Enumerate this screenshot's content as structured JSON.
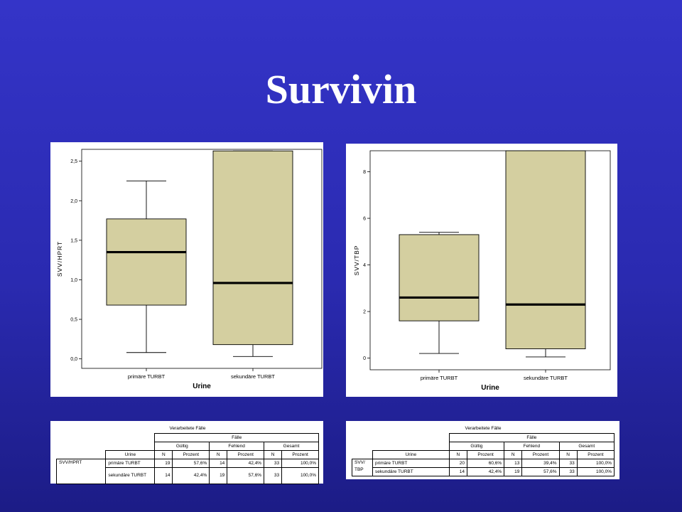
{
  "slide": {
    "title": "Survivin"
  },
  "chart_data": [
    {
      "type": "box",
      "ylabel": "SVV/HPRT",
      "xlabel": "Urine",
      "ylim": [
        -0.12,
        2.65
      ],
      "yticks": [
        0.0,
        0.5,
        1.0,
        1.5,
        2.0,
        2.5
      ],
      "ytick_labels": [
        "0,0",
        "0,5",
        "1,0",
        "1,5",
        "2,0",
        "2,5"
      ],
      "categories": [
        "primäre TURBT",
        "sekundäre TURBT"
      ],
      "boxes": [
        {
          "whisker_low": 0.08,
          "q1": 0.68,
          "median": 1.35,
          "q3": 1.77,
          "whisker_high": 2.25
        },
        {
          "whisker_low": 0.03,
          "q1": 0.18,
          "median": 0.96,
          "q3": 2.63,
          "whisker_high": 2.63
        }
      ],
      "box_color": "#d4cfa0"
    },
    {
      "type": "box",
      "ylabel": "SVV/TBP",
      "xlabel": "Urine",
      "ylim": [
        -0.5,
        8.9
      ],
      "yticks": [
        0,
        2,
        4,
        6,
        8
      ],
      "ytick_labels": [
        "0",
        "2",
        "4",
        "6",
        "8"
      ],
      "categories": [
        "primäre TURBT",
        "sekundäre TURBT"
      ],
      "boxes": [
        {
          "whisker_low": 0.2,
          "q1": 1.6,
          "median": 2.6,
          "q3": 5.3,
          "whisker_high": 5.4
        },
        {
          "whisker_low": 0.05,
          "q1": 0.4,
          "median": 2.3,
          "q3": 8.9,
          "whisker_high": 8.9
        }
      ],
      "box_color": "#d4cfa0"
    }
  ],
  "tables": [
    {
      "caption": "Verarbeitete Fälle",
      "group_header": "Fälle",
      "subgroups": [
        "Gültig",
        "Fehlend",
        "Gesamt"
      ],
      "columns": [
        "N",
        "Prozent"
      ],
      "row_header_label": "Urine",
      "variable": "SVV/HPRT",
      "rows": [
        {
          "label": "primäre TURBT",
          "values": [
            "19",
            "57,6%",
            "14",
            "42,4%",
            "33",
            "100,0%"
          ]
        },
        {
          "label": "sekundäre TURBT",
          "values": [
            "14",
            "42,4%",
            "19",
            "57,6%",
            "33",
            "100,0%"
          ]
        }
      ]
    },
    {
      "caption": "Verarbeitete Fälle",
      "group_header": "Fälle",
      "subgroups": [
        "Gültig",
        "Fehlend",
        "Gesamt"
      ],
      "columns": [
        "N",
        "Prozent"
      ],
      "row_header_label": "Urine",
      "variable": "SVV/ TBP",
      "rows": [
        {
          "label": "primäre TURBT",
          "values": [
            "20",
            "60,6%",
            "13",
            "39,4%",
            "33",
            "100,0%"
          ]
        },
        {
          "label": "sekundäre TURBT",
          "values": [
            "14",
            "42,4%",
            "19",
            "57,6%",
            "33",
            "100,0%"
          ]
        }
      ]
    }
  ]
}
